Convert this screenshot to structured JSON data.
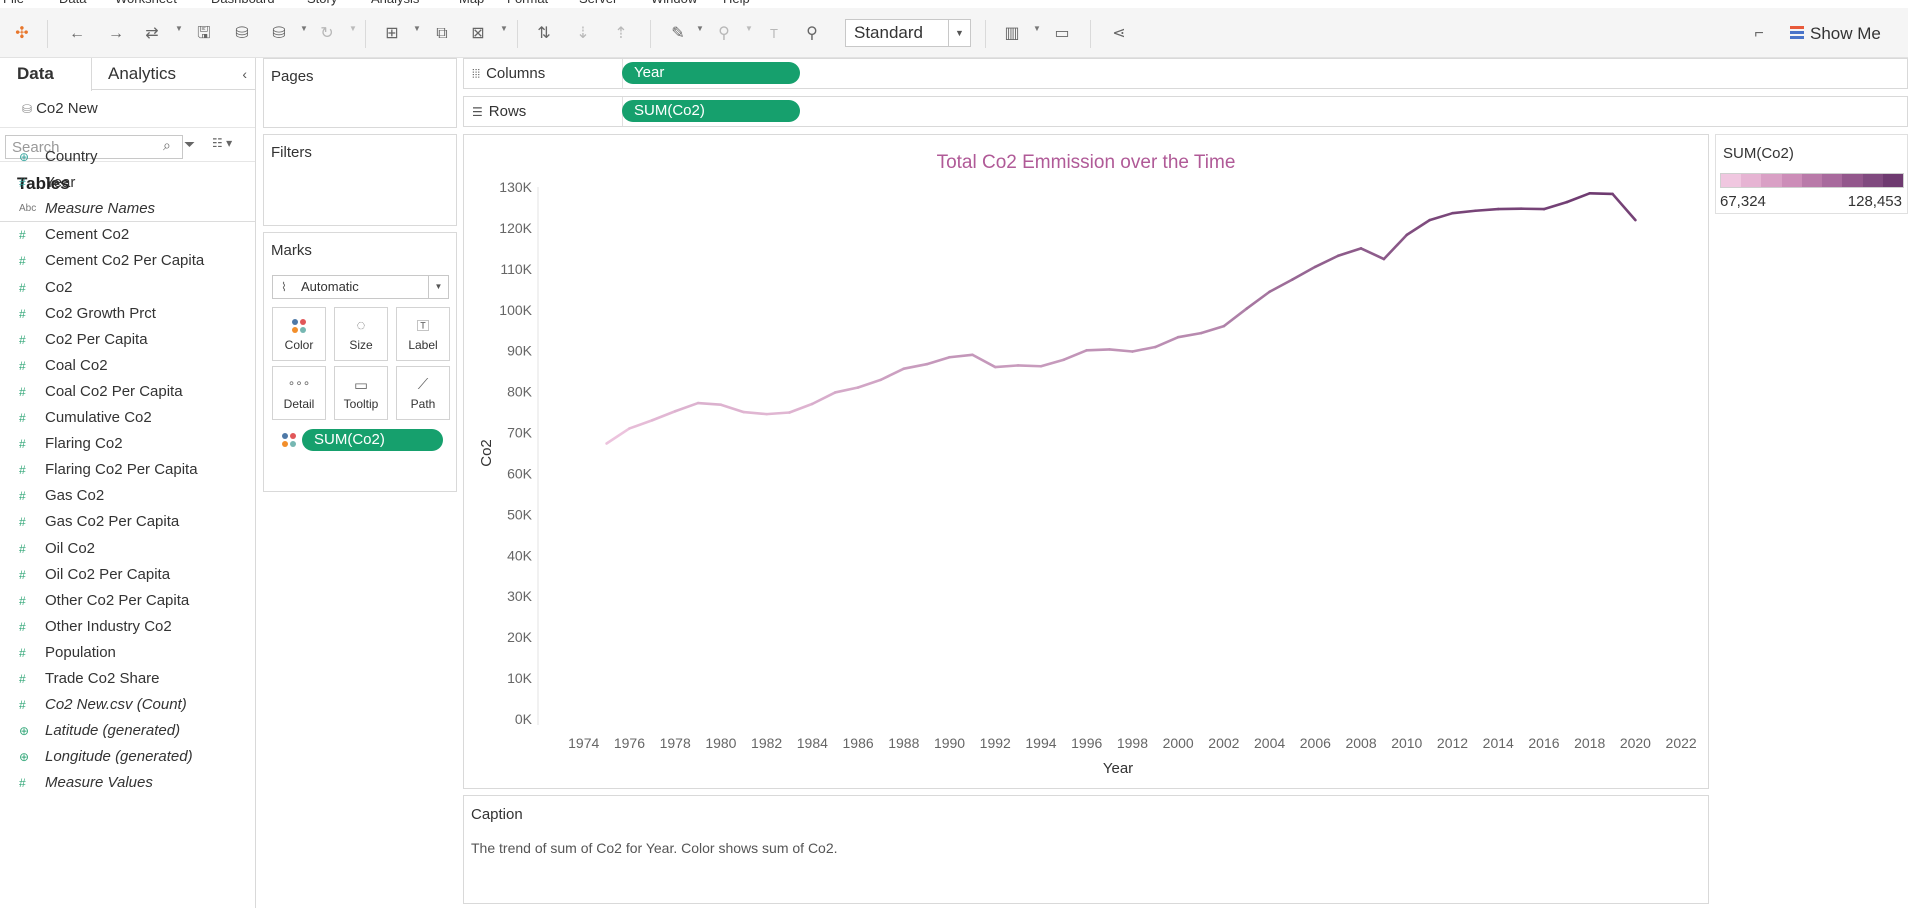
{
  "menu": [
    "File",
    "Data",
    "Worksheet",
    "Dashboard",
    "Story",
    "Analysis",
    "Map",
    "Format",
    "Server",
    "Window",
    "Help"
  ],
  "toolbar": {
    "fit_value": "Standard",
    "show_me_label": "Show Me"
  },
  "data_pane": {
    "tab_data": "Data",
    "tab_analytics": "Analytics",
    "datasource": "Co2 New",
    "search_placeholder": "Search",
    "tables_heading": "Tables",
    "dimensions": [
      {
        "name": "Country",
        "icon": "globe-icon"
      },
      {
        "name": "Year",
        "icon": "hash-icon"
      },
      {
        "name": "Measure Names",
        "icon": "abc-icon"
      }
    ],
    "measures": [
      {
        "name": "Cement Co2"
      },
      {
        "name": "Cement Co2 Per Capita"
      },
      {
        "name": "Co2"
      },
      {
        "name": "Co2 Growth Prct"
      },
      {
        "name": "Co2 Per Capita"
      },
      {
        "name": "Coal Co2"
      },
      {
        "name": "Coal Co2 Per Capita"
      },
      {
        "name": "Cumulative Co2"
      },
      {
        "name": "Flaring Co2"
      },
      {
        "name": "Flaring Co2 Per Capita"
      },
      {
        "name": "Gas Co2"
      },
      {
        "name": "Gas Co2 Per Capita"
      },
      {
        "name": "Oil Co2"
      },
      {
        "name": "Oil Co2 Per Capita"
      },
      {
        "name": "Other Co2 Per Capita"
      },
      {
        "name": "Other Industry Co2"
      },
      {
        "name": "Population"
      },
      {
        "name": "Trade Co2 Share"
      }
    ],
    "generated": [
      {
        "name": "Co2 New.csv (Count)",
        "icon": "hash-icon"
      },
      {
        "name": "Latitude (generated)",
        "icon": "globe-icon"
      },
      {
        "name": "Longitude (generated)",
        "icon": "globe-icon"
      },
      {
        "name": "Measure Values",
        "icon": "hash-icon"
      }
    ]
  },
  "cards": {
    "pages": "Pages",
    "filters": "Filters",
    "marks": "Marks",
    "mark_type": "Automatic",
    "mark_buttons": [
      "Color",
      "Size",
      "Label",
      "Detail",
      "Tooltip",
      "Path"
    ],
    "marks_pill": "SUM(Co2)"
  },
  "shelves": {
    "columns_label": "Columns",
    "columns_pill": "Year",
    "rows_label": "Rows",
    "rows_pill": "SUM(Co2)"
  },
  "legend": {
    "title": "SUM(Co2)",
    "min_label": "67,324",
    "max_label": "128,453",
    "colors": [
      "#f0c7e0",
      "#e6b4d3",
      "#d9a0c5",
      "#cc8db8",
      "#b97aa9",
      "#a86a9d",
      "#93578c",
      "#804a7f",
      "#6e3a70"
    ]
  },
  "caption": {
    "title": "Caption",
    "text": "The trend of sum of Co2 for Year.  Color shows sum of Co2."
  },
  "chart_data": {
    "type": "line",
    "title": "Total Co2 Emmission over the Time",
    "xlabel": "Year",
    "ylabel": "Co2",
    "xlim": [
      1972,
      2023
    ],
    "ylim": [
      0,
      130000
    ],
    "x_ticks": [
      1974,
      1976,
      1978,
      1980,
      1982,
      1984,
      1986,
      1988,
      1990,
      1992,
      1994,
      1996,
      1998,
      2000,
      2002,
      2004,
      2006,
      2008,
      2010,
      2012,
      2014,
      2016,
      2018,
      2020,
      2022
    ],
    "y_ticks": [
      0,
      10000,
      20000,
      30000,
      40000,
      50000,
      60000,
      70000,
      80000,
      90000,
      100000,
      110000,
      120000,
      130000
    ],
    "y_tick_labels": [
      "0K",
      "10K",
      "20K",
      "30K",
      "40K",
      "50K",
      "60K",
      "70K",
      "80K",
      "90K",
      "100K",
      "110K",
      "120K",
      "130K"
    ],
    "color_range": [
      67324,
      128453
    ],
    "grid": false,
    "x": [
      1975,
      1976,
      1977,
      1978,
      1979,
      1980,
      1981,
      1982,
      1983,
      1984,
      1985,
      1986,
      1987,
      1988,
      1989,
      1990,
      1991,
      1992,
      1993,
      1994,
      1995,
      1996,
      1997,
      1998,
      1999,
      2000,
      2001,
      2002,
      2003,
      2004,
      2005,
      2006,
      2007,
      2008,
      2009,
      2010,
      2011,
      2012,
      2013,
      2014,
      2015,
      2016,
      2017,
      2018,
      2019,
      2020
    ],
    "values": [
      67324,
      71000,
      73000,
      75200,
      77200,
      76800,
      75000,
      74500,
      74900,
      77000,
      79800,
      81000,
      82900,
      85600,
      86700,
      88400,
      89000,
      86000,
      86400,
      86200,
      87800,
      90100,
      90300,
      89800,
      90900,
      93300,
      94300,
      96000,
      100300,
      104400,
      107400,
      110500,
      113200,
      115000,
      112400,
      118300,
      121900,
      123600,
      124200,
      124600,
      124700,
      124600,
      126300,
      128453,
      128300,
      121900
    ]
  }
}
